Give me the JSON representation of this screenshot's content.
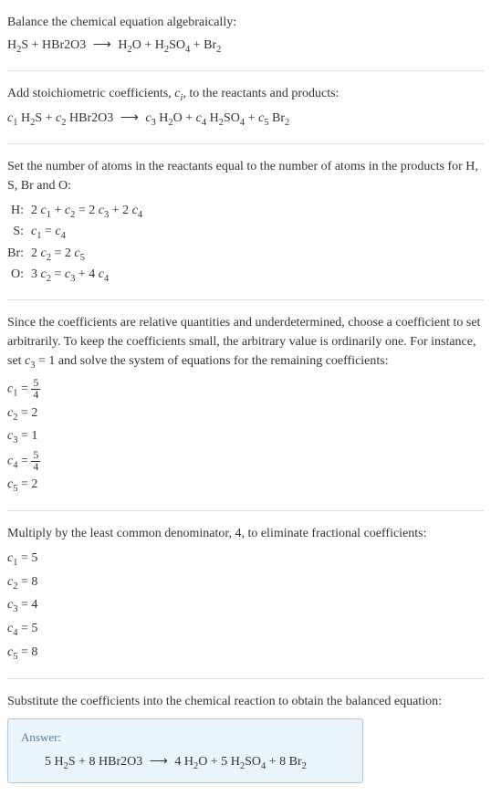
{
  "section1": {
    "intro": "Balance the chemical equation algebraically:",
    "eq_lhs1": "H",
    "eq_lhs1_sub": "2",
    "eq_lhs1_tail": "S + HBr2O3",
    "arrow": "⟶",
    "eq_rhs1": "H",
    "eq_rhs1_sub": "2",
    "eq_rhs1_tail": "O + H",
    "eq_rhs2_sub": "2",
    "eq_rhs2_tail": "SO",
    "eq_rhs3_sub": "4",
    "eq_rhs3_tail": " + Br",
    "eq_rhs4_sub": "2"
  },
  "section2": {
    "intro1": "Add stoichiometric coefficients, ",
    "ci": "c",
    "ci_sub": "i",
    "intro2": ", to the reactants and products:",
    "c1": "c",
    "c1_sub": "1",
    "sp1": " H",
    "sp1_sub": "2",
    "sp1_tail": "S + ",
    "c2": "c",
    "c2_sub": "2",
    "sp2": " HBr2O3",
    "arrow": "⟶",
    "c3": "c",
    "c3_sub": "3",
    "sp3": " H",
    "sp3_sub": "2",
    "sp3_tail": "O + ",
    "c4": "c",
    "c4_sub": "4",
    "sp4": " H",
    "sp4_sub": "2",
    "sp4_tail": "SO",
    "sp4_sub2": "4",
    "sp4_tail2": " + ",
    "c5": "c",
    "c5_sub": "5",
    "sp5": " Br",
    "sp5_sub": "2"
  },
  "section3": {
    "intro": "Set the number of atoms in the reactants equal to the number of atoms in the products for H, S, Br and O:",
    "rows": [
      {
        "label": "H:",
        "lhs1": "2 ",
        "c1": "c",
        "c1s": "1",
        "mid1": " + ",
        "c2": "c",
        "c2s": "2",
        "eq": " = 2 ",
        "c3": "c",
        "c3s": "3",
        "mid2": " + 2 ",
        "c4": "c",
        "c4s": "4"
      },
      {
        "label": "S:",
        "c1": "c",
        "c1s": "1",
        "eq": " = ",
        "c2": "c",
        "c2s": "4"
      },
      {
        "label": "Br:",
        "lhs1": "2 ",
        "c1": "c",
        "c1s": "2",
        "eq": " = 2 ",
        "c2": "c",
        "c2s": "5"
      },
      {
        "label": "O:",
        "lhs1": "3 ",
        "c1": "c",
        "c1s": "2",
        "eq": " = ",
        "c2": "c",
        "c2s": "3",
        "mid1": " + 4 ",
        "c3": "c",
        "c3s": "4"
      }
    ]
  },
  "section4": {
    "intro1": "Since the coefficients are relative quantities and underdetermined, choose a coefficient to set arbitrarily. To keep the coefficients small, the arbitrary value is ordinarily one. For instance, set ",
    "c3": "c",
    "c3_sub": "3",
    "intro2": " = 1 and solve the system of equations for the remaining coefficients:",
    "coeffs": [
      {
        "c": "c",
        "cs": "1",
        "eq": " = ",
        "frac_num": "5",
        "frac_den": "4"
      },
      {
        "c": "c",
        "cs": "2",
        "eq": " = 2"
      },
      {
        "c": "c",
        "cs": "3",
        "eq": " = 1"
      },
      {
        "c": "c",
        "cs": "4",
        "eq": " = ",
        "frac_num": "5",
        "frac_den": "4"
      },
      {
        "c": "c",
        "cs": "5",
        "eq": " = 2"
      }
    ]
  },
  "section5": {
    "intro": "Multiply by the least common denominator, 4, to eliminate fractional coefficients:",
    "coeffs": [
      {
        "c": "c",
        "cs": "1",
        "eq": " = 5"
      },
      {
        "c": "c",
        "cs": "2",
        "eq": " = 8"
      },
      {
        "c": "c",
        "cs": "3",
        "eq": " = 4"
      },
      {
        "c": "c",
        "cs": "4",
        "eq": " = 5"
      },
      {
        "c": "c",
        "cs": "5",
        "eq": " = 8"
      }
    ]
  },
  "section6": {
    "intro": "Substitute the coefficients into the chemical reaction to obtain the balanced equation:",
    "answer_label": "Answer:",
    "a_lhs1": "5 H",
    "a_lhs1_sub": "2",
    "a_lhs1_tail": "S + 8 HBr2O3",
    "arrow": "⟶",
    "a_rhs1": "4 H",
    "a_rhs1_sub": "2",
    "a_rhs1_tail": "O + 5 H",
    "a_rhs2_sub": "2",
    "a_rhs2_tail": "SO",
    "a_rhs3_sub": "4",
    "a_rhs3_tail": " + 8 Br",
    "a_rhs4_sub": "2"
  }
}
